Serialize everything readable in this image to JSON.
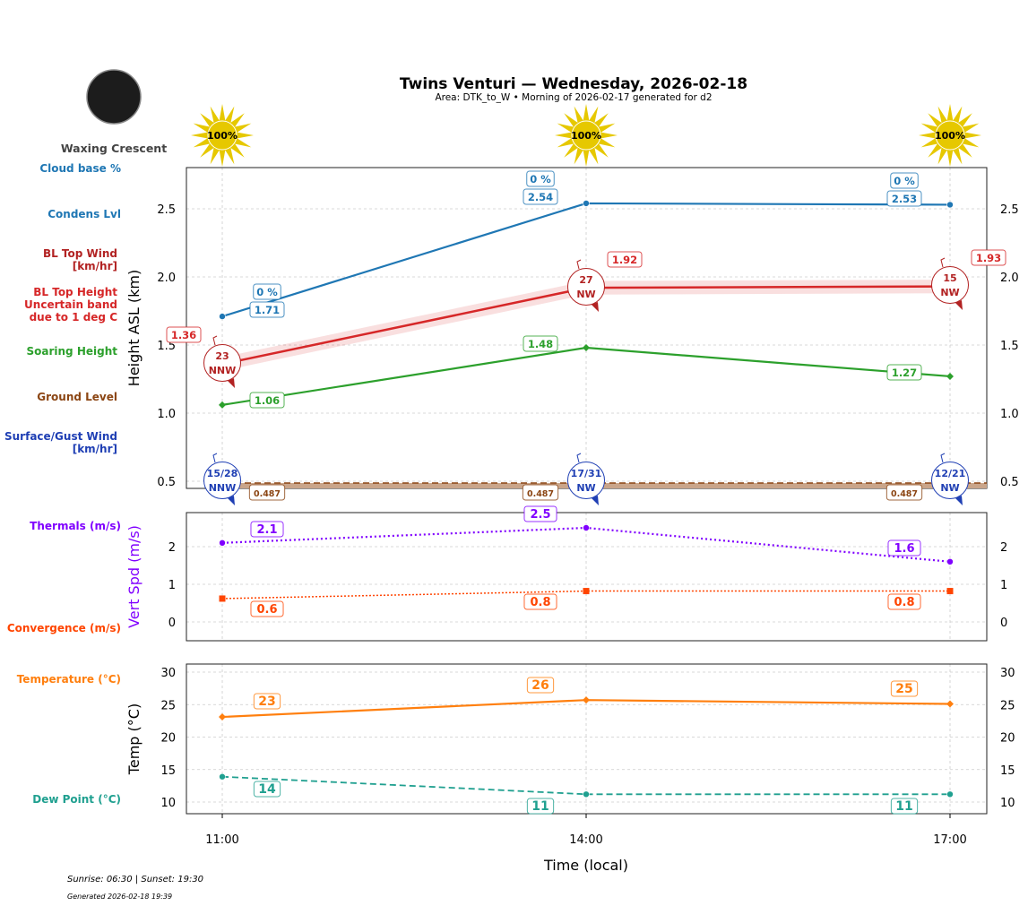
{
  "title": "Twins Venturi — Wednesday, 2026-02-18",
  "subtitle": "Area: DTK_to_W • Morning of 2026-02-17 generated for d2",
  "moon_phase": "Waxing Crescent",
  "footer": {
    "sun": "Sunrise: 06:30 | Sunset: 19:30",
    "generated": "Generated 2026-02-18 19:39"
  },
  "colors": {
    "cloud": "#1f77b4",
    "bltop": "#d62728",
    "blwind": "#b22222",
    "soaring": "#2ca02c",
    "ground": "#8b4513",
    "surface": "#1f3fb4",
    "thermal": "#8000ff",
    "convergence": "#ff4500",
    "temp": "#ff7f0e",
    "dew": "#20a090",
    "sun": "#e6c800"
  },
  "left_labels": {
    "cloud_base": "Cloud base %",
    "condens": "Condens Lvl",
    "bl_wind": [
      "BL Top Wind",
      "[km/hr]"
    ],
    "bl_top": [
      "BL Top Height",
      "Uncertain band",
      "due to 1 deg C"
    ],
    "soaring": "Soaring Height",
    "ground": "Ground Level",
    "surface_wind": [
      "Surface/Gust Wind",
      "[km/hr]"
    ],
    "thermals": "Thermals (m/s)",
    "convergence": "Convergence (m/s)",
    "temperature": "Temperature (°C)",
    "dew": "Dew Point (°C)"
  },
  "chart_data": [
    {
      "type": "line",
      "ylabel": "Height ASL (km)",
      "ylim": [
        0.45,
        2.8
      ],
      "yticks": [
        "0.5",
        "1.0",
        "1.5",
        "2.0",
        "2.5"
      ],
      "x": [
        "11:00",
        "14:00",
        "17:00"
      ],
      "sun_percent": [
        "100%",
        "100%",
        "100%"
      ],
      "cloud_base_pct": [
        "0 %",
        "0 %",
        "0 %"
      ],
      "series": [
        {
          "key": "condens",
          "values": [
            1.71,
            2.54,
            2.53
          ],
          "labels": [
            "1.71",
            "2.54",
            "2.53"
          ]
        },
        {
          "key": "bltop",
          "values": [
            1.36,
            1.92,
            1.93
          ],
          "labels": [
            "1.36",
            "1.92",
            "1.93"
          ],
          "band": 0.05
        },
        {
          "key": "soaring",
          "values": [
            1.06,
            1.48,
            1.27
          ],
          "labels": [
            "1.06",
            "1.48",
            "1.27"
          ]
        },
        {
          "key": "ground",
          "values": [
            0.487,
            0.487,
            0.487
          ],
          "labels": [
            "0.487",
            "0.487",
            "0.487"
          ]
        }
      ],
      "bl_wind": [
        {
          "speed": "23",
          "dir": "NNW"
        },
        {
          "speed": "27",
          "dir": "NW"
        },
        {
          "speed": "15",
          "dir": "NW"
        }
      ],
      "surface_wind": [
        {
          "speed": "15/28",
          "dir": "NNW"
        },
        {
          "speed": "17/31",
          "dir": "NW"
        },
        {
          "speed": "12/21",
          "dir": "NW"
        }
      ],
      "grid": true
    },
    {
      "type": "line",
      "ylabel": "Vert Spd (m/s)",
      "ylim": [
        -0.5,
        2.9
      ],
      "yticks": [
        "0",
        "1",
        "2"
      ],
      "series": [
        {
          "key": "thermal",
          "values": [
            2.1,
            2.5,
            1.6
          ],
          "labels": [
            "2.1",
            "2.5",
            "1.6"
          ]
        },
        {
          "key": "convergence",
          "values": [
            0.62,
            0.82,
            0.82
          ],
          "labels": [
            "0.6",
            "0.8",
            "0.8"
          ]
        }
      ],
      "grid": true
    },
    {
      "type": "line",
      "ylabel": "Temp (°C)",
      "xlabel": "Time (local)",
      "ylim": [
        8.2,
        31.2
      ],
      "yticks": [
        "10",
        "15",
        "20",
        "25",
        "30"
      ],
      "xticks": [
        "11:00",
        "14:00",
        "17:00"
      ],
      "series": [
        {
          "key": "temp",
          "values": [
            23.1,
            25.7,
            25.1
          ],
          "labels": [
            "23",
            "26",
            "25"
          ]
        },
        {
          "key": "dew",
          "values": [
            13.9,
            11.2,
            11.2
          ],
          "labels": [
            "14",
            "11",
            "11"
          ]
        }
      ],
      "grid": true
    }
  ]
}
